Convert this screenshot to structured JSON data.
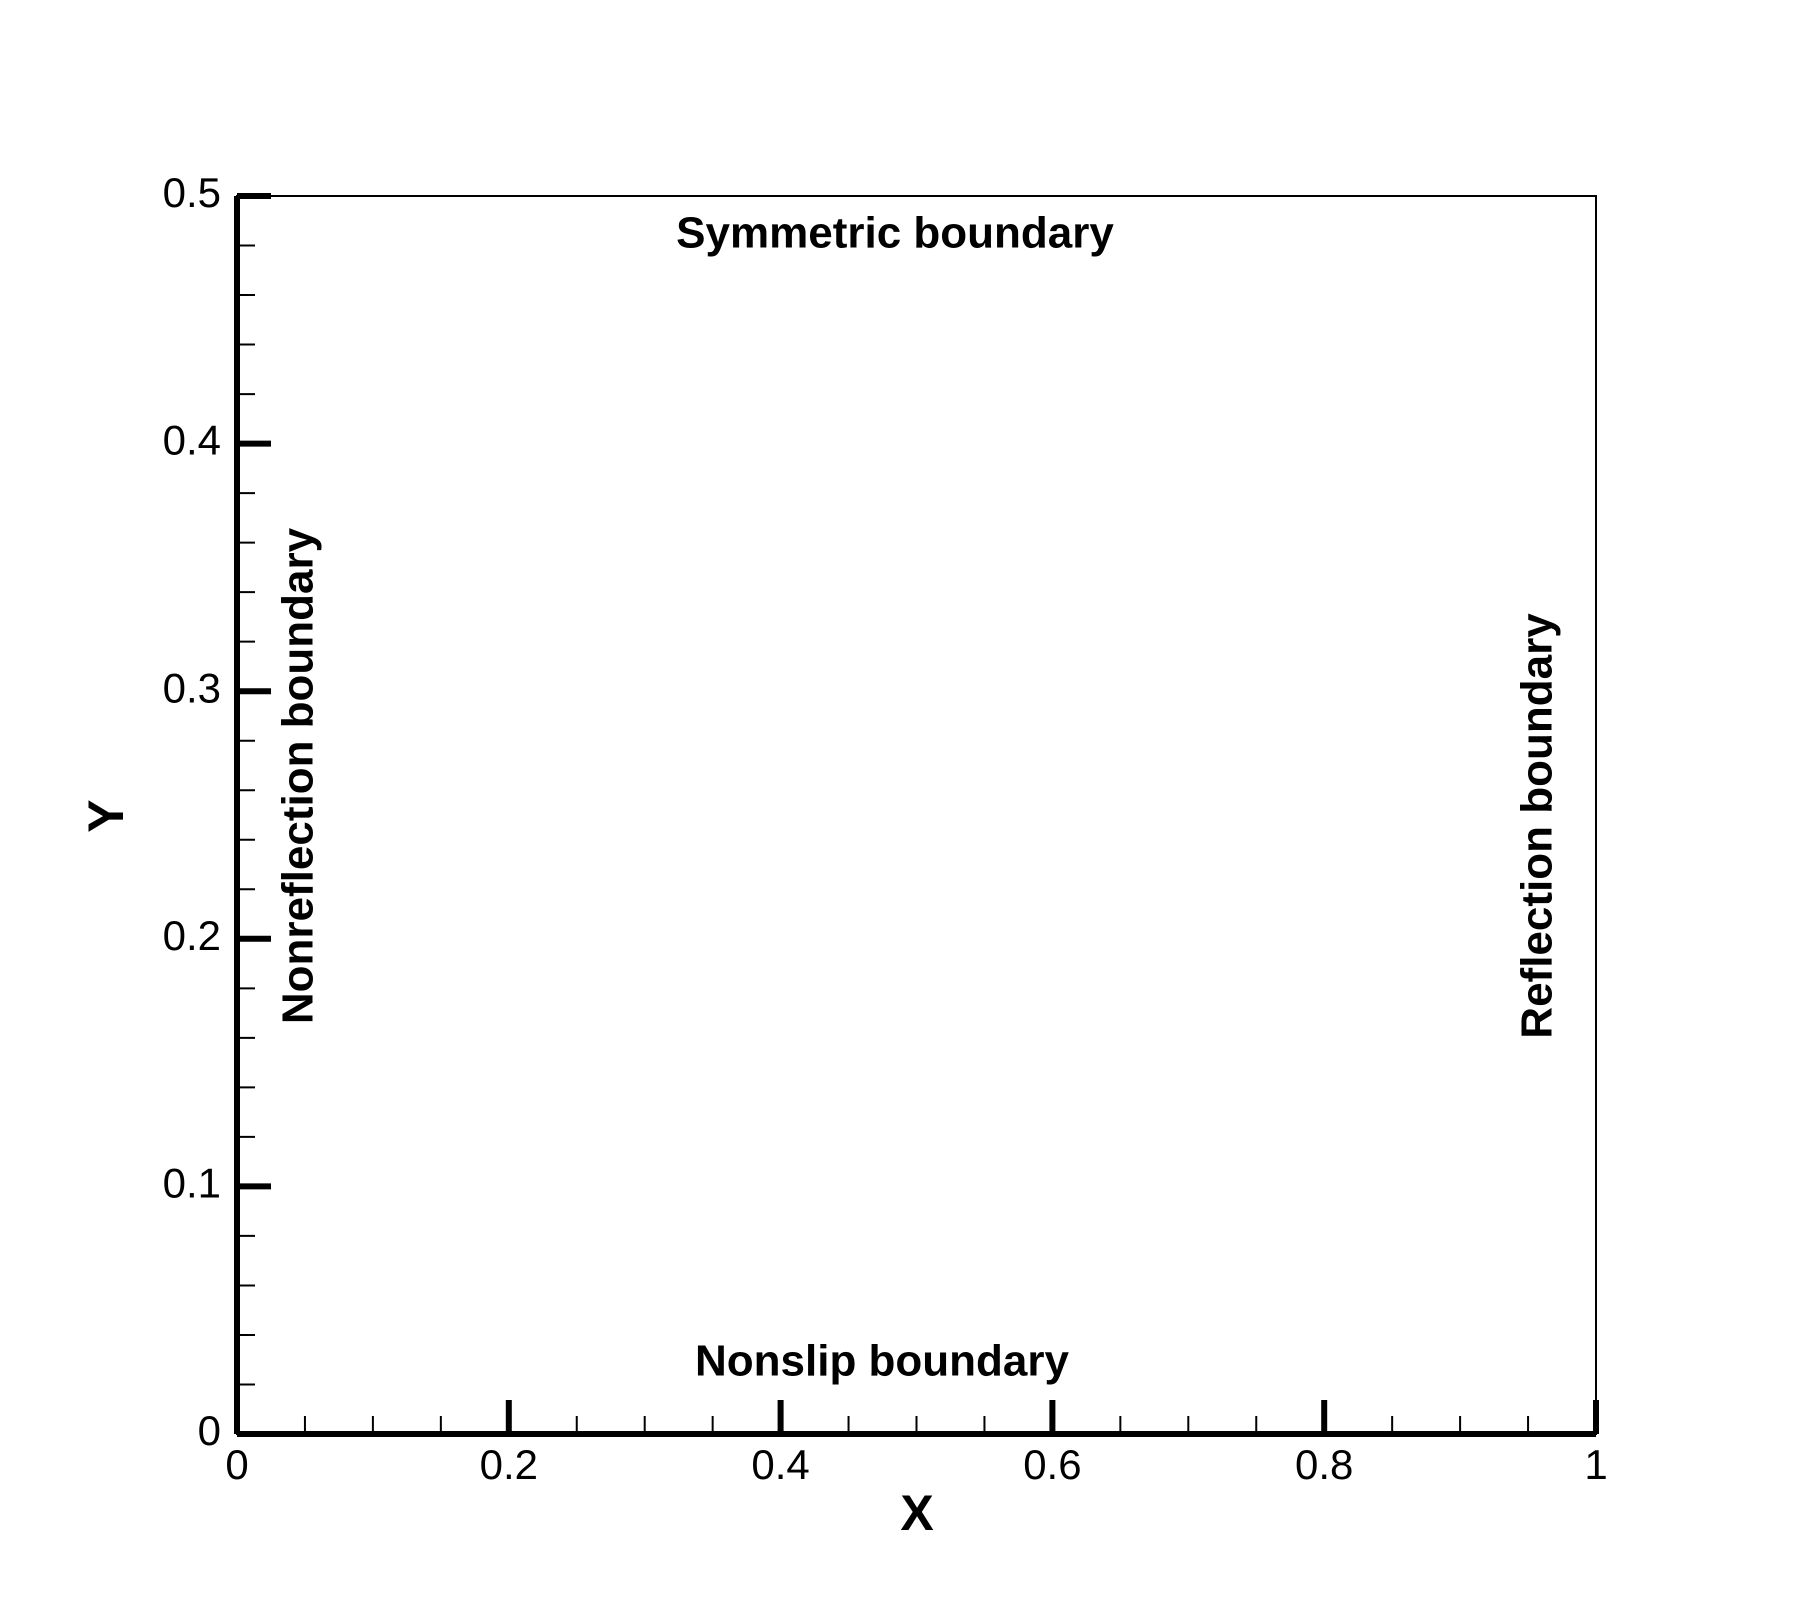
{
  "chart_data": {
    "type": "scatter",
    "xlabel": "X",
    "ylabel": "Y",
    "xlim": [
      0,
      1
    ],
    "ylim": [
      0,
      0.5
    ],
    "xticks": [
      0,
      0.2,
      0.4,
      0.6,
      0.8,
      1
    ],
    "yticks": [
      0,
      0.1,
      0.2,
      0.3,
      0.4,
      0.5
    ],
    "xminorticks": [
      0.05,
      0.1,
      0.15,
      0.25,
      0.3,
      0.35,
      0.45,
      0.5,
      0.55,
      0.65,
      0.7,
      0.75,
      0.85,
      0.9,
      0.95
    ],
    "yminorticks": [
      0.02,
      0.04,
      0.06,
      0.08,
      0.12,
      0.14,
      0.16,
      0.18,
      0.22,
      0.24,
      0.26,
      0.28,
      0.32,
      0.34,
      0.36,
      0.38,
      0.42,
      0.44,
      0.46,
      0.48
    ],
    "annotations": [
      "Symmetric boundary",
      "Nonslip boundary",
      "Nonreflection boundary",
      "Reflection boundary"
    ],
    "grid": false
  }
}
